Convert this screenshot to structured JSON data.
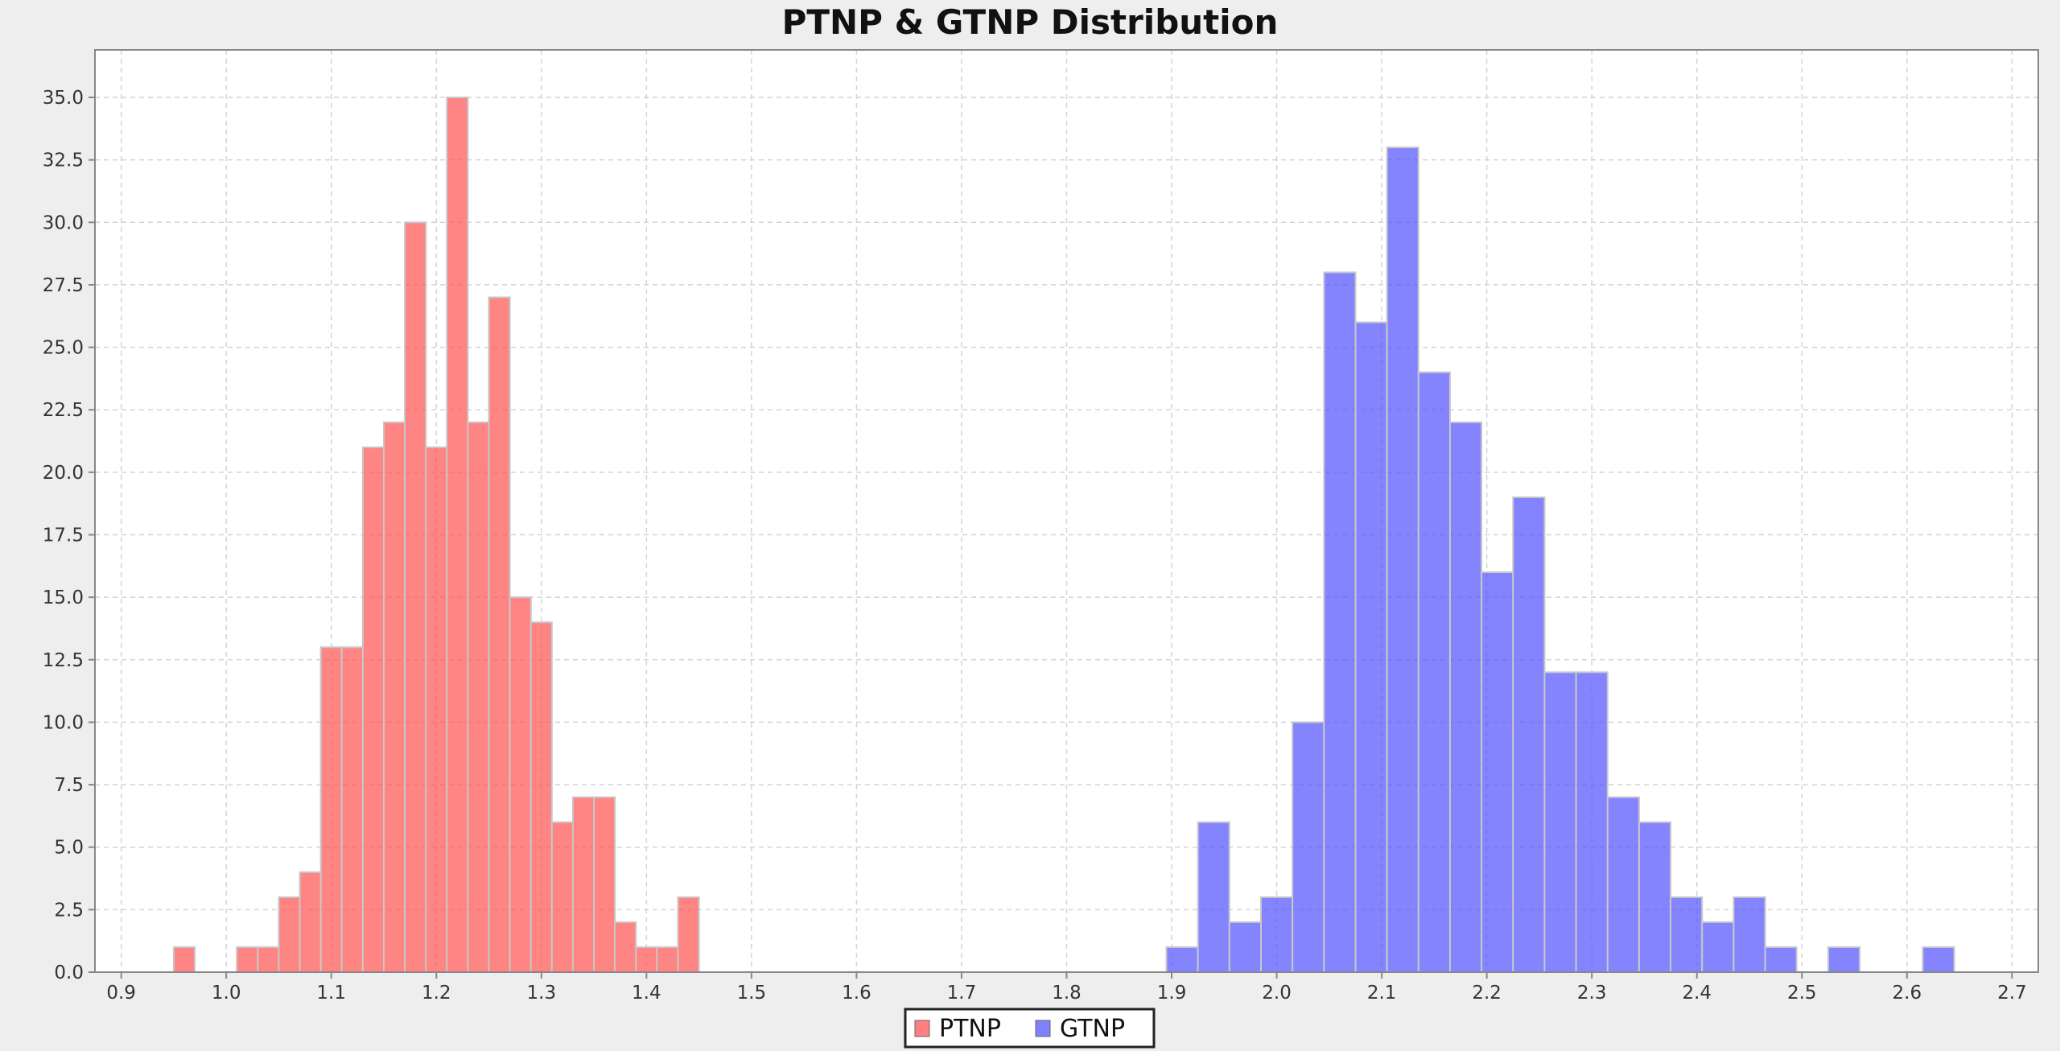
{
  "chart_data": {
    "type": "bar",
    "title": "PTNP & GTNP Distribution",
    "xlabel": "",
    "ylabel": "",
    "xlim": [
      0.875,
      2.725
    ],
    "ylim": [
      0,
      35
    ],
    "x_ticks": [
      "0.9",
      "1.0",
      "1.1",
      "1.2",
      "1.3",
      "1.4",
      "1.5",
      "1.6",
      "1.7",
      "1.8",
      "1.9",
      "2.0",
      "2.1",
      "2.2",
      "2.3",
      "2.4",
      "2.5",
      "2.6",
      "2.7"
    ],
    "y_ticks": [
      "0.0",
      "2.5",
      "5.0",
      "7.5",
      "10.0",
      "12.5",
      "15.0",
      "17.5",
      "20.0",
      "22.5",
      "25.0",
      "27.5",
      "30.0",
      "32.5",
      "35.0"
    ],
    "grid": true,
    "legend_position": "bottom",
    "series": [
      {
        "name": "PTNP",
        "color": "#ff5555",
        "bin_width": 0.02,
        "bins": [
          {
            "x": 0.96,
            "count": 1
          },
          {
            "x": 1.02,
            "count": 1
          },
          {
            "x": 1.04,
            "count": 1
          },
          {
            "x": 1.06,
            "count": 3
          },
          {
            "x": 1.08,
            "count": 4
          },
          {
            "x": 1.1,
            "count": 13
          },
          {
            "x": 1.12,
            "count": 13
          },
          {
            "x": 1.14,
            "count": 21
          },
          {
            "x": 1.16,
            "count": 22
          },
          {
            "x": 1.18,
            "count": 30
          },
          {
            "x": 1.2,
            "count": 21
          },
          {
            "x": 1.22,
            "count": 35
          },
          {
            "x": 1.24,
            "count": 22
          },
          {
            "x": 1.26,
            "count": 27
          },
          {
            "x": 1.28,
            "count": 15
          },
          {
            "x": 1.3,
            "count": 14
          },
          {
            "x": 1.32,
            "count": 6
          },
          {
            "x": 1.34,
            "count": 7
          },
          {
            "x": 1.36,
            "count": 7
          },
          {
            "x": 1.38,
            "count": 2
          },
          {
            "x": 1.4,
            "count": 1
          },
          {
            "x": 1.42,
            "count": 1
          },
          {
            "x": 1.44,
            "count": 3
          }
        ]
      },
      {
        "name": "GTNP",
        "color": "#5555ff",
        "bin_width": 0.03,
        "bins": [
          {
            "x": 1.91,
            "count": 1
          },
          {
            "x": 1.94,
            "count": 6
          },
          {
            "x": 1.97,
            "count": 2
          },
          {
            "x": 2.0,
            "count": 3
          },
          {
            "x": 2.03,
            "count": 10
          },
          {
            "x": 2.06,
            "count": 28
          },
          {
            "x": 2.09,
            "count": 26
          },
          {
            "x": 2.12,
            "count": 33
          },
          {
            "x": 2.15,
            "count": 24
          },
          {
            "x": 2.18,
            "count": 22
          },
          {
            "x": 2.21,
            "count": 16
          },
          {
            "x": 2.24,
            "count": 19
          },
          {
            "x": 2.27,
            "count": 12
          },
          {
            "x": 2.3,
            "count": 12
          },
          {
            "x": 2.33,
            "count": 7
          },
          {
            "x": 2.36,
            "count": 6
          },
          {
            "x": 2.39,
            "count": 3
          },
          {
            "x": 2.42,
            "count": 2
          },
          {
            "x": 2.45,
            "count": 3
          },
          {
            "x": 2.48,
            "count": 1
          },
          {
            "x": 2.54,
            "count": 1
          },
          {
            "x": 2.63,
            "count": 1
          }
        ]
      }
    ]
  }
}
